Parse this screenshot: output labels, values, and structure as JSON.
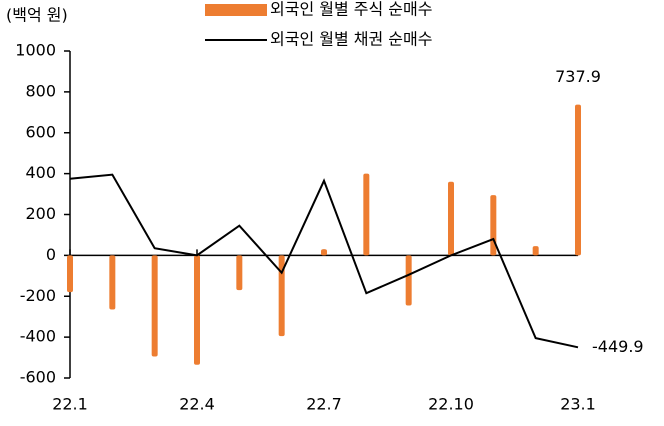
{
  "chart_data": {
    "type": "bar_line",
    "unit_label": "(백억 원)",
    "categories": [
      "22.1",
      null,
      null,
      "22.4",
      null,
      null,
      "22.7",
      null,
      null,
      "22.10",
      null,
      null,
      "23.1"
    ],
    "series": [
      {
        "name": "외국인 월별 주식 순매수",
        "type": "bar",
        "color": "#ED7D31",
        "values": [
          -180,
          -265,
          -495,
          -535,
          -170,
          -395,
          30,
          400,
          -245,
          360,
          295,
          45,
          737.9
        ],
        "value_labels": [
          null,
          null,
          null,
          null,
          null,
          null,
          null,
          null,
          null,
          null,
          null,
          null,
          "737.9"
        ]
      },
      {
        "name": "외국인 월별 채권 순매수",
        "type": "line",
        "color": "#000000",
        "values": [
          375,
          395,
          35,
          0,
          145,
          -85,
          365,
          -185,
          -95,
          0,
          80,
          -405,
          -449.9
        ],
        "value_labels": [
          null,
          null,
          null,
          null,
          null,
          null,
          null,
          null,
          null,
          null,
          null,
          null,
          "-449.9"
        ]
      }
    ],
    "ylim": [
      -600,
      1000
    ],
    "yticks": [
      -600,
      -400,
      -200,
      0,
      200,
      400,
      600,
      800,
      1000
    ],
    "grid": false
  }
}
